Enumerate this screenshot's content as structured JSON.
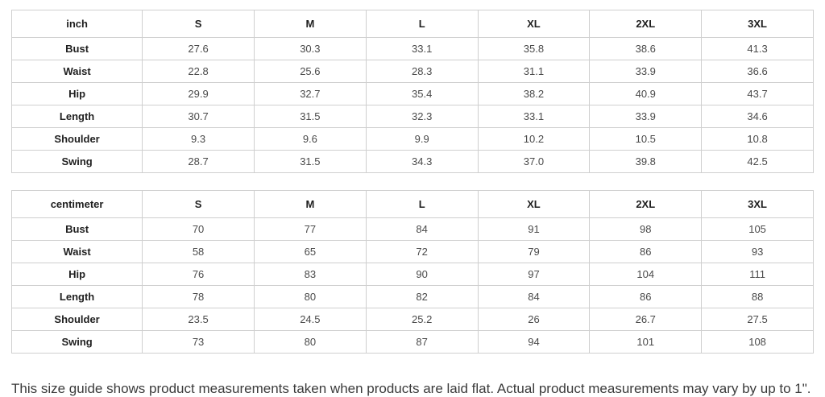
{
  "tables": [
    {
      "unit_header": "inch",
      "size_headers": [
        "S",
        "M",
        "L",
        "XL",
        "2XL",
        "3XL"
      ],
      "rows": [
        {
          "label": "Bust",
          "values": [
            "27.6",
            "30.3",
            "33.1",
            "35.8",
            "38.6",
            "41.3"
          ]
        },
        {
          "label": "Waist",
          "values": [
            "22.8",
            "25.6",
            "28.3",
            "31.1",
            "33.9",
            "36.6"
          ]
        },
        {
          "label": "Hip",
          "values": [
            "29.9",
            "32.7",
            "35.4",
            "38.2",
            "40.9",
            "43.7"
          ]
        },
        {
          "label": "Length",
          "values": [
            "30.7",
            "31.5",
            "32.3",
            "33.1",
            "33.9",
            "34.6"
          ]
        },
        {
          "label": "Shoulder",
          "values": [
            "9.3",
            "9.6",
            "9.9",
            "10.2",
            "10.5",
            "10.8"
          ]
        },
        {
          "label": "Swing",
          "values": [
            "28.7",
            "31.5",
            "34.3",
            "37.0",
            "39.8",
            "42.5"
          ]
        }
      ]
    },
    {
      "unit_header": "centimeter",
      "size_headers": [
        "S",
        "M",
        "L",
        "XL",
        "2XL",
        "3XL"
      ],
      "rows": [
        {
          "label": "Bust",
          "values": [
            "70",
            "77",
            "84",
            "91",
            "98",
            "105"
          ]
        },
        {
          "label": "Waist",
          "values": [
            "58",
            "65",
            "72",
            "79",
            "86",
            "93"
          ]
        },
        {
          "label": "Hip",
          "values": [
            "76",
            "83",
            "90",
            "97",
            "104",
            "111"
          ]
        },
        {
          "label": "Length",
          "values": [
            "78",
            "80",
            "82",
            "84",
            "86",
            "88"
          ]
        },
        {
          "label": "Shoulder",
          "values": [
            "23.5",
            "24.5",
            "25.2",
            "26",
            "26.7",
            "27.5"
          ]
        },
        {
          "label": "Swing",
          "values": [
            "73",
            "80",
            "87",
            "94",
            "101",
            "108"
          ]
        }
      ]
    }
  ],
  "footer_note": "This size guide shows product measurements taken when products are laid flat. Actual product measurements may vary by up to 1\".",
  "colors": {
    "background": "#ffffff",
    "border": "#cfcfcf",
    "header_text": "#1f1f1f",
    "value_text": "#4a4a4a",
    "note_text": "#3b3b3b"
  }
}
